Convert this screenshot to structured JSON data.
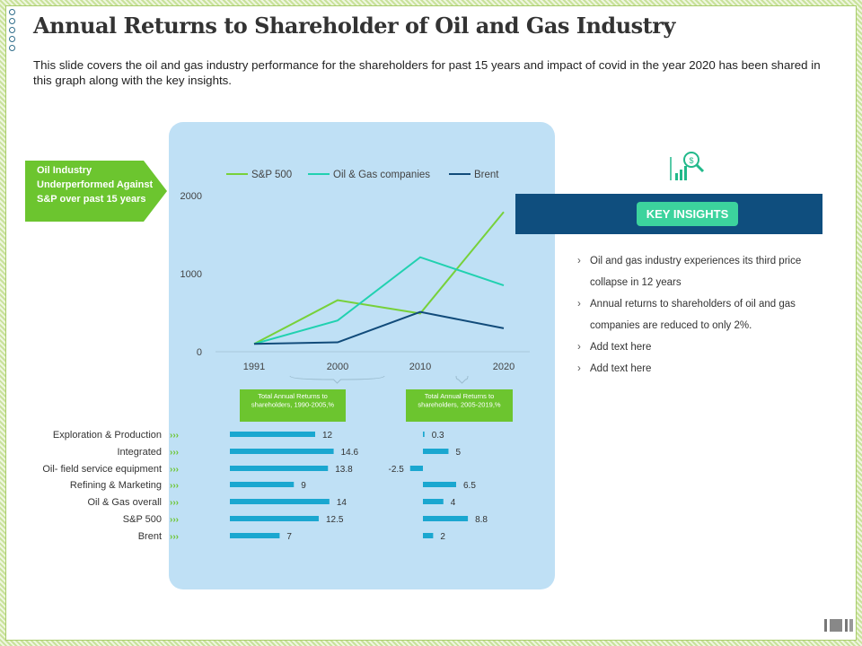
{
  "slide": {
    "title": "Annual Returns to Shareholder of Oil and Gas Industry",
    "subtitle": "This slide covers the oil and gas industry performance for the shareholders for past 15 years and impact of covid in the year 2020 has been shared in this graph  along with the key insights.",
    "callout": "Oil Industry Underperformed Against S&P over past 15 years",
    "insights_button": "KEY INSIGHTS",
    "insights": [
      "Oil and gas industry experiences its third price collapse in 12 years",
      "Annual returns to shareholders of oil and gas companies are reduced to only 2%.",
      "Add text here",
      "Add text here"
    ],
    "colors": {
      "green": "#77d13a",
      "teal": "#21d1b0",
      "navy": "#114b7a",
      "bar": "#1aa7d0",
      "panel": "#bfe0f5"
    }
  },
  "chart_data": [
    {
      "type": "line",
      "x": [
        "1991",
        "2000",
        "2010",
        "2020"
      ],
      "ylim": [
        0,
        2000
      ],
      "yticks": [
        "0",
        "1000",
        "2000"
      ],
      "legend_position": "top",
      "series": [
        {
          "name": "S&P 500",
          "color": "#77d13a",
          "values": [
            100,
            660,
            490,
            1790
          ]
        },
        {
          "name": "Oil & Gas companies",
          "color": "#21d1b0",
          "values": [
            100,
            400,
            1210,
            850
          ]
        },
        {
          "name": "Brent",
          "color": "#114b7a",
          "values": [
            100,
            120,
            510,
            300
          ]
        }
      ]
    },
    {
      "type": "bar",
      "orientation": "horizontal",
      "categories": [
        "Exploration & Production",
        "Integrated",
        "Oil- field service equipment",
        "Refining & Marketing",
        "Oil & Gas overall",
        "S&P 500",
        "Brent"
      ],
      "series": [
        {
          "name": "Total Annual Returns to shareholders, 1990-2005,%",
          "values": [
            12,
            14.6,
            13.8,
            9,
            14,
            12.5,
            7
          ],
          "labels": [
            "12",
            "14.6",
            "13.8",
            "9",
            "14",
            "12.5",
            "7"
          ]
        },
        {
          "name": "Total Annual Returns to shareholders, 2005-2019,%",
          "values": [
            0.3,
            5,
            -2.5,
            6.5,
            4,
            8.8,
            2
          ],
          "labels": [
            "0.3",
            "5",
            "-2.5",
            "6.5",
            "4",
            "8.8",
            "2"
          ]
        }
      ]
    }
  ]
}
